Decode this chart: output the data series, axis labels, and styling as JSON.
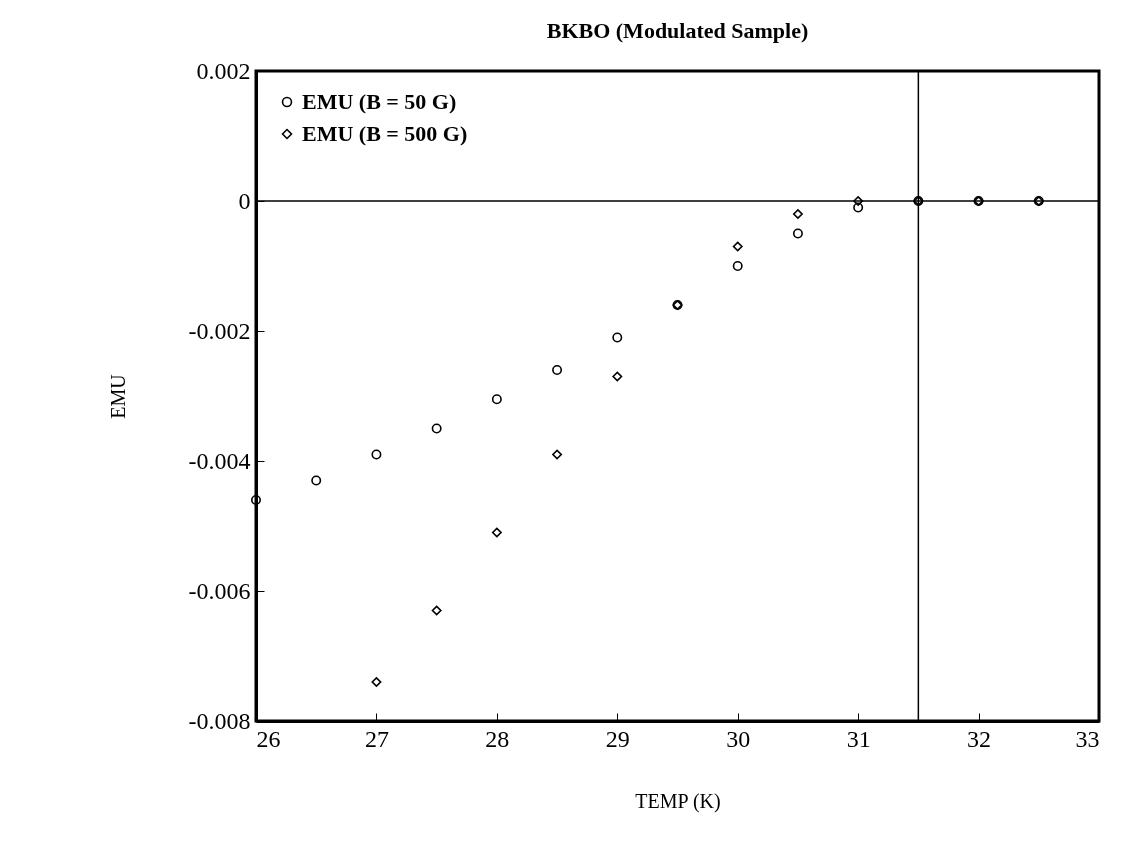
{
  "chart_data": {
    "type": "scatter",
    "title": "BKBO (Modulated Sample)",
    "xlabel": "TEMP (K)",
    "ylabel": "EMU",
    "series": [
      {
        "name": "EMU (B = 50 G)",
        "color": "#000000",
        "marker": "circle",
        "x": [
          26,
          26.5,
          27,
          27.5,
          28,
          28.5,
          29,
          29.5,
          30,
          30.5,
          31,
          31.5,
          32,
          32.5
        ],
        "values": [
          -0.0046,
          -0.0043,
          -0.0039,
          -0.0035,
          -0.00305,
          -0.0026,
          -0.0021,
          -0.0016,
          -0.001,
          -0.0005,
          -0.0001,
          0,
          0,
          0
        ]
      },
      {
        "name": "EMU (B = 500 G)",
        "color": "#000000",
        "marker": "diamond",
        "x": [
          27,
          27.5,
          28,
          28.5,
          29,
          29.5,
          30,
          30.5,
          31,
          31.5,
          32,
          32.5
        ],
        "values": [
          -0.0074,
          -0.0063,
          -0.0051,
          -0.0039,
          -0.0027,
          -0.0016,
          -0.0007,
          -0.0002,
          0,
          0,
          0,
          0
        ]
      }
    ],
    "xlim": [
      26,
      33
    ],
    "xticks": [
      26,
      27,
      28,
      29,
      30,
      31,
      32,
      33
    ],
    "ylim": [
      -0.008,
      0.002
    ],
    "yticks": [
      -0.008,
      -0.006,
      -0.004,
      -0.002,
      0,
      0.002
    ],
    "ref_lines": [
      {
        "axis": "y",
        "value": 0,
        "color": "#000000"
      },
      {
        "axis": "x",
        "value": 31.5,
        "color": "#000000"
      }
    ],
    "grid": false,
    "legend": "top left"
  }
}
